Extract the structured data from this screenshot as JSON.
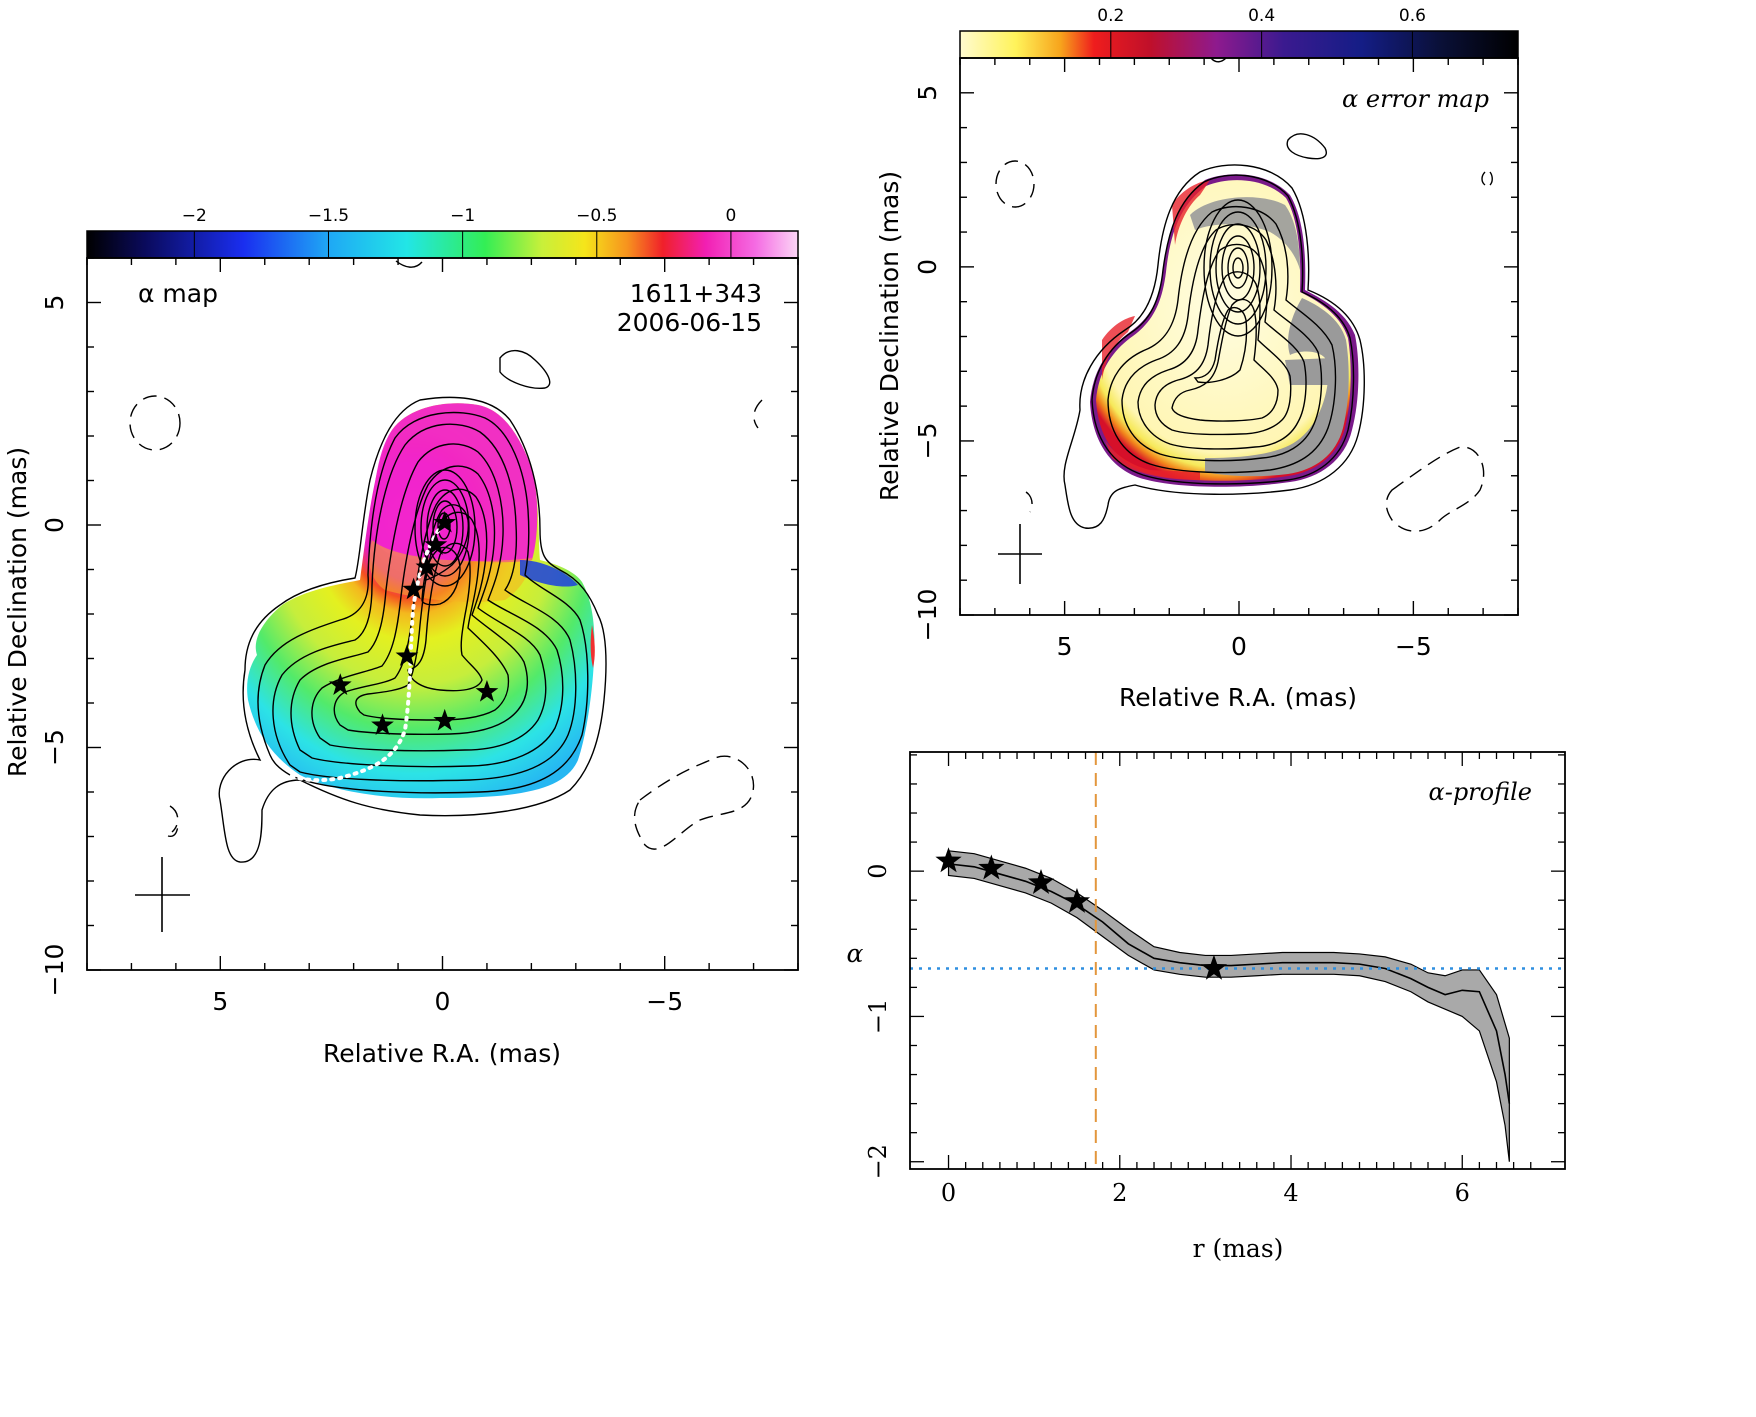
{
  "chart_data": [
    {
      "type": "heatmap",
      "title": "α map",
      "source_label": "1611+343",
      "date_label": "2006-06-15",
      "xlabel": "Relative R.A. (mas)",
      "ylabel": "Relative Declination (mas)",
      "xlim": [
        8,
        -8
      ],
      "ylim": [
        -10,
        6
      ],
      "x_ticks": [
        5,
        0,
        -5
      ],
      "y_ticks": [
        5,
        0,
        -5,
        -10
      ],
      "colorbar": {
        "ticks": [
          -2,
          -1.5,
          -1,
          -0.5,
          0
        ],
        "range": [
          -2.4,
          0.25
        ]
      },
      "star_points": [
        {
          "x": -0.05,
          "y": 0.05
        },
        {
          "x": 0.15,
          "y": -0.45
        },
        {
          "x": 0.35,
          "y": -0.95
        },
        {
          "x": 0.65,
          "y": -1.45
        },
        {
          "x": 0.8,
          "y": -2.95
        },
        {
          "x": 2.3,
          "y": -3.6
        },
        {
          "x": -1.0,
          "y": -3.75
        },
        {
          "x": 1.35,
          "y": -4.5
        },
        {
          "x": -0.05,
          "y": -4.4
        }
      ]
    },
    {
      "type": "heatmap",
      "title": "α error map",
      "xlabel": "Relative R.A. (mas)",
      "ylabel": "Relative Declination (mas)",
      "xlim": [
        8,
        -8
      ],
      "ylim": [
        -10,
        6
      ],
      "x_ticks": [
        5,
        0,
        -5
      ],
      "y_ticks": [
        5,
        0,
        -5,
        -10
      ],
      "colorbar": {
        "ticks": [
          0.2,
          0.4,
          0.6
        ],
        "range": [
          0.0,
          0.74
        ]
      }
    },
    {
      "type": "line",
      "title": "α-profile",
      "xlabel": "r (mas)",
      "ylabel": "α",
      "xlim": [
        -0.45,
        7.2
      ],
      "ylim": [
        -2.05,
        0.82
      ],
      "x_ticks": [
        0,
        2,
        4,
        6
      ],
      "y_ticks": [
        0,
        -1,
        -2
      ],
      "series": [
        {
          "x": [
            0,
            0.3,
            0.6,
            0.9,
            1.2,
            1.5,
            1.8,
            2.1,
            2.4,
            2.7,
            3.0,
            3.3,
            3.6,
            3.9,
            4.2,
            4.5,
            4.8,
            5.1,
            5.4,
            5.6,
            5.8,
            6.0,
            6.2,
            6.4,
            6.5,
            6.55
          ],
          "y": [
            0.05,
            0.03,
            -0.02,
            -0.07,
            -0.14,
            -0.23,
            -0.35,
            -0.5,
            -0.6,
            -0.63,
            -0.65,
            -0.65,
            -0.64,
            -0.63,
            -0.63,
            -0.63,
            -0.64,
            -0.67,
            -0.74,
            -0.8,
            -0.85,
            -0.82,
            -0.83,
            -1.1,
            -1.4,
            -1.6
          ],
          "lo": [
            -0.03,
            -0.05,
            -0.1,
            -0.15,
            -0.22,
            -0.32,
            -0.45,
            -0.58,
            -0.68,
            -0.71,
            -0.73,
            -0.73,
            -0.72,
            -0.71,
            -0.71,
            -0.71,
            -0.72,
            -0.76,
            -0.83,
            -0.9,
            -0.95,
            -1.0,
            -1.1,
            -1.45,
            -1.75,
            -2.0
          ],
          "hi": [
            0.14,
            0.12,
            0.07,
            0.02,
            -0.05,
            -0.15,
            -0.27,
            -0.4,
            -0.52,
            -0.56,
            -0.58,
            -0.58,
            -0.57,
            -0.56,
            -0.56,
            -0.56,
            -0.57,
            -0.59,
            -0.64,
            -0.7,
            -0.72,
            -0.68,
            -0.68,
            -0.85,
            -1.05,
            -1.15
          ]
        }
      ],
      "stars": [
        {
          "x": 0.0,
          "y": 0.07
        },
        {
          "x": 0.5,
          "y": 0.02
        },
        {
          "x": 1.08,
          "y": -0.08
        },
        {
          "x": 1.5,
          "y": -0.21
        },
        {
          "x": 3.1,
          "y": -0.67
        }
      ],
      "vline_x": 1.72,
      "hline_y": -0.67,
      "colors": {
        "vline": "#e3963c",
        "hline": "#2f8fe0",
        "band": "#a9a9a9"
      }
    }
  ]
}
